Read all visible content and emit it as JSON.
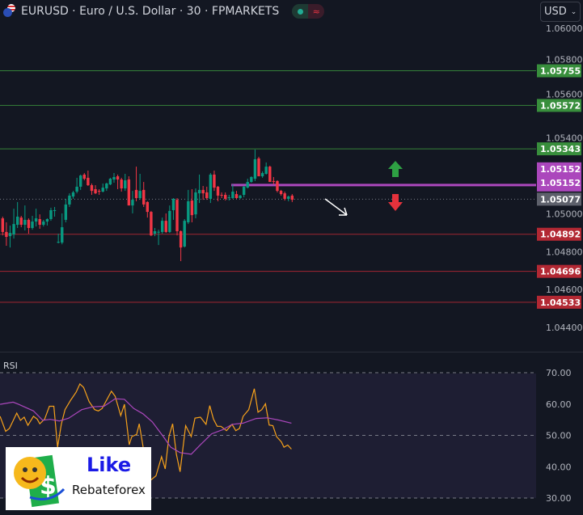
{
  "header": {
    "title": "EURUSD · Euro / U.S. Dollar · 30 · FPMARKETS",
    "currency": "USD",
    "market_status_icon": "market-open-dot",
    "session_icon": "wave-icon"
  },
  "colors": {
    "up": "#089981",
    "down": "#f23645",
    "resistance": "#388e3c",
    "support": "#b22833",
    "pivot": "#ab47bc",
    "last": "#5d606b",
    "rsi": "#f7a21b",
    "rsi_ma": "#ab47bc",
    "bg": "#131722",
    "rsi_bg": "#1e1e33"
  },
  "chart_data": [
    {
      "type": "candlestick",
      "title": "EURUSD · Euro / U.S. Dollar · 30 · FPMARKETS",
      "ylim": [
        1.0433,
        1.0607
      ],
      "y_ticks": [
        "1.06000",
        "1.05800",
        "1.05600",
        "1.05400",
        "1.05000",
        "1.04800",
        "1.04600",
        "1.04400"
      ],
      "y_tick_values": [
        1.06,
        1.058,
        1.056,
        1.054,
        1.05,
        1.048,
        1.046,
        1.044
      ],
      "ohlc": [
        [
          1.04976,
          1.04985,
          1.04886,
          1.04904
        ],
        [
          1.04904,
          1.04955,
          1.04831,
          1.04878
        ],
        [
          1.04882,
          1.04938,
          1.04822,
          1.04899
        ],
        [
          1.04891,
          1.05027,
          1.04869,
          1.04946
        ],
        [
          1.04942,
          1.05062,
          1.04925,
          1.04985
        ],
        [
          1.0498,
          1.04989,
          1.04929,
          1.04942
        ],
        [
          1.04942,
          1.05044,
          1.04912,
          1.04968
        ],
        [
          1.04968,
          1.04976,
          1.04895,
          1.04925
        ],
        [
          1.04925,
          1.04989,
          1.04916,
          1.04959
        ],
        [
          1.04959,
          1.05027,
          1.04933,
          1.04976
        ],
        [
          1.04972,
          1.04997,
          1.04921,
          1.04942
        ],
        [
          1.04942,
          1.04968,
          1.04933,
          1.04959
        ],
        [
          1.04959,
          1.04976,
          1.04938,
          1.04972
        ],
        [
          1.04972,
          1.05032,
          1.04963,
          1.05019
        ],
        [
          1.05015,
          1.05036,
          1.04985,
          1.05019
        ],
        [
          1.04848,
          1.04895,
          1.04844,
          1.04852
        ],
        [
          1.04848,
          1.05002,
          1.04839,
          1.04929
        ],
        [
          1.04968,
          1.05079,
          1.04955,
          1.05049
        ],
        [
          1.05049,
          1.05108,
          1.05036,
          1.05096
        ],
        [
          1.05091,
          1.05121,
          1.05079,
          1.05113
        ],
        [
          1.05117,
          1.0519,
          1.05108,
          1.05143
        ],
        [
          1.05143,
          1.05207,
          1.05126,
          1.05202
        ],
        [
          1.05207,
          1.05215,
          1.05177,
          1.05185
        ],
        [
          1.0519,
          1.05228,
          1.05147,
          1.05151
        ],
        [
          1.05151,
          1.0516,
          1.051,
          1.05121
        ],
        [
          1.0513,
          1.05151,
          1.05104,
          1.05108
        ],
        [
          1.05121,
          1.0513,
          1.051,
          1.0512
        ],
        [
          1.05117,
          1.0516,
          1.05113,
          1.05138
        ],
        [
          1.05134,
          1.05164,
          1.05121,
          1.0516
        ],
        [
          1.05155,
          1.0519,
          1.05151,
          1.05185
        ],
        [
          1.05181,
          1.05215,
          1.05164,
          1.05194
        ],
        [
          1.05198,
          1.05207,
          1.0513,
          1.05181
        ],
        [
          1.05181,
          1.0519,
          1.05117,
          1.05134
        ],
        [
          1.05134,
          1.05211,
          1.05121,
          1.05177
        ],
        [
          1.05181,
          1.05198,
          1.05044,
          1.05044
        ],
        [
          1.05044,
          1.05121,
          1.05002,
          1.05074
        ],
        [
          1.05126,
          1.05249,
          1.05066,
          1.05083
        ],
        [
          1.05083,
          1.05211,
          1.05074,
          1.05121
        ],
        [
          1.05126,
          1.05168,
          1.05036,
          1.05049
        ],
        [
          1.05062,
          1.05066,
          1.0498,
          1.0501
        ],
        [
          1.0501,
          1.05015,
          1.04882,
          1.04886
        ],
        [
          1.04895,
          1.04925,
          1.04882,
          1.04908
        ],
        [
          1.04904,
          1.04916,
          1.04835,
          1.04905
        ],
        [
          1.04904,
          1.0498,
          1.04895,
          1.04963
        ],
        [
          1.04963,
          1.05002,
          1.04899,
          1.04904
        ],
        [
          1.04904,
          1.05044,
          1.04899,
          1.05015
        ],
        [
          1.05019,
          1.05083,
          1.04968,
          1.05079
        ],
        [
          1.05074,
          1.05083,
          1.04886,
          1.04908
        ],
        [
          1.04908,
          1.04912,
          1.0475,
          1.04822
        ],
        [
          1.04827,
          1.04972,
          1.04822,
          1.04963
        ],
        [
          1.04955,
          1.05126,
          1.04946,
          1.05066
        ],
        [
          1.0507,
          1.0513,
          1.04955,
          1.04993
        ],
        [
          1.04997,
          1.05134,
          1.04976,
          1.05113
        ],
        [
          1.05108,
          1.05207,
          1.05057,
          1.05126
        ],
        [
          1.05126,
          1.05147,
          1.05074,
          1.05108
        ],
        [
          1.05113,
          1.05143,
          1.05074,
          1.05083
        ],
        [
          1.05079,
          1.05215,
          1.05057,
          1.05207
        ],
        [
          1.05207,
          1.05228,
          1.05121,
          1.05138
        ],
        [
          1.05143,
          1.05147,
          1.05066,
          1.05096
        ],
        [
          1.051,
          1.05113,
          1.05083,
          1.05099
        ],
        [
          1.051,
          1.05113,
          1.0507,
          1.05079
        ],
        [
          1.05083,
          1.051,
          1.0507,
          1.05087
        ],
        [
          1.05083,
          1.05155,
          1.05079,
          1.05117
        ],
        [
          1.05104,
          1.05121,
          1.05079,
          1.05083
        ],
        [
          1.05083,
          1.051,
          1.05079,
          1.05096
        ],
        [
          1.051,
          1.05147,
          1.05087,
          1.05143
        ],
        [
          1.05138,
          1.05185,
          1.05134,
          1.05168
        ],
        [
          1.05168,
          1.05198,
          1.05164,
          1.05194
        ],
        [
          1.05185,
          1.05339,
          1.05173,
          1.05288
        ],
        [
          1.05292,
          1.05301,
          1.05198,
          1.05198
        ],
        [
          1.05198,
          1.05224,
          1.0519,
          1.05215
        ],
        [
          1.05211,
          1.05271,
          1.05207,
          1.05249
        ],
        [
          1.05249,
          1.05254,
          1.05168,
          1.05168
        ],
        [
          1.05173,
          1.05194,
          1.05155,
          1.05172
        ],
        [
          1.05173,
          1.05177,
          1.05113,
          1.05121
        ],
        [
          1.05121,
          1.05126,
          1.05096,
          1.05104
        ],
        [
          1.05108,
          1.05117,
          1.0507,
          1.05079
        ],
        [
          1.05079,
          1.05096,
          1.05066,
          1.05091
        ],
        [
          1.05096,
          1.05104,
          1.05062,
          1.05074
        ]
      ],
      "levels": [
        {
          "price": 1.05755,
          "label": "1.05755",
          "kind": "resistance"
        },
        {
          "price": 1.05572,
          "label": "1.05572",
          "kind": "resistance"
        },
        {
          "price": 1.05343,
          "label": "1.05343",
          "kind": "resistance"
        },
        {
          "price": 1.04892,
          "label": "1.04892",
          "kind": "support"
        },
        {
          "price": 1.04696,
          "label": "1.04696",
          "kind": "support"
        },
        {
          "price": 1.04533,
          "label": "1.04533",
          "kind": "support"
        }
      ],
      "pivot": {
        "price": 1.05152,
        "labels": [
          "1.05152",
          "1.05152"
        ]
      },
      "last_price": {
        "price": 1.05077,
        "label": "1.05077"
      },
      "annotations": [
        "up-arrow-green",
        "down-arrow-red",
        "down-right-arrow-white"
      ]
    },
    {
      "type": "line",
      "title": "RSI",
      "ylim": [
        27,
        73
      ],
      "y_ticks": [
        "70.00",
        "60.00",
        "50.00",
        "40.00",
        "30.00"
      ],
      "y_tick_values": [
        70,
        60,
        50,
        40,
        30
      ],
      "bands": [
        70,
        50,
        30
      ],
      "series": [
        {
          "key": "rsi",
          "points": [
            [
              0.3,
              56.1
            ],
            [
              1.8,
              51.3
            ],
            [
              2.8,
              52.2
            ],
            [
              4.8,
              57.1
            ],
            [
              5.8,
              54.8
            ],
            [
              6.8,
              55.8
            ],
            [
              7.8,
              53.2
            ],
            [
              9.3,
              56.1
            ],
            [
              10.3,
              55.2
            ],
            [
              11,
              53.7
            ],
            [
              12.3,
              55.2
            ],
            [
              13.6,
              59.3
            ],
            [
              14.8,
              59.3
            ],
            [
              15.8,
              46.2
            ],
            [
              16.8,
              53.5
            ],
            [
              17.8,
              58.2
            ],
            [
              19.3,
              61.2
            ],
            [
              20.8,
              63.8
            ],
            [
              21.8,
              66.4
            ],
            [
              22.8,
              65.3
            ],
            [
              24.3,
              60.8
            ],
            [
              25.8,
              58.2
            ],
            [
              26.8,
              57.8
            ],
            [
              27.8,
              58.6
            ],
            [
              30.3,
              64.1
            ],
            [
              31.3,
              62.5
            ],
            [
              32.8,
              56.3
            ],
            [
              33.8,
              59.9
            ],
            [
              35.1,
              47
            ],
            [
              35.8,
              49.6
            ],
            [
              37.1,
              50.3
            ],
            [
              37.8,
              53.7
            ],
            [
              38.8,
              46.6
            ],
            [
              39.8,
              36.7
            ],
            [
              40.3,
              35
            ],
            [
              41.1,
              35.9
            ],
            [
              42.3,
              37.1
            ],
            [
              43.8,
              43.2
            ],
            [
              44.8,
              39.3
            ],
            [
              45.8,
              49.6
            ],
            [
              46.8,
              53.7
            ],
            [
              47.8,
              44
            ],
            [
              48.8,
              38.4
            ],
            [
              50.3,
              53.1
            ],
            [
              51.8,
              49.6
            ],
            [
              52.8,
              55.5
            ],
            [
              54.3,
              55.8
            ],
            [
              55.8,
              53.5
            ],
            [
              56.8,
              59.5
            ],
            [
              57.8,
              55.2
            ],
            [
              58.8,
              52.9
            ],
            [
              59.8,
              52.9
            ],
            [
              61.3,
              51.5
            ],
            [
              62.8,
              53.5
            ],
            [
              63.8,
              51.5
            ],
            [
              64.8,
              52.2
            ],
            [
              65.8,
              56.1
            ],
            [
              67.3,
              58.2
            ],
            [
              68.8,
              64.9
            ],
            [
              69.8,
              57.4
            ],
            [
              70.8,
              58.2
            ],
            [
              71.8,
              60.1
            ],
            [
              72.8,
              53.3
            ],
            [
              73.8,
              53.1
            ],
            [
              74.8,
              49.6
            ],
            [
              76.1,
              47.9
            ],
            [
              76.8,
              46.2
            ],
            [
              77.8,
              46.9
            ],
            [
              78.8,
              45.6
            ]
          ]
        },
        {
          "key": "rsi_ma",
          "points": [
            [
              0.3,
              59.9
            ],
            [
              3.8,
              60.6
            ],
            [
              5.3,
              59.9
            ],
            [
              9.3,
              57.8
            ],
            [
              11.8,
              54.8
            ],
            [
              13.8,
              55.1
            ],
            [
              16.3,
              54.6
            ],
            [
              18.8,
              55.5
            ],
            [
              22.3,
              58.2
            ],
            [
              25.3,
              59.1
            ],
            [
              28.3,
              59.3
            ],
            [
              31.3,
              61.7
            ],
            [
              33.8,
              61.5
            ],
            [
              36.3,
              58.6
            ],
            [
              38.8,
              56.9
            ],
            [
              41.3,
              54.3
            ],
            [
              44.3,
              49.6
            ],
            [
              46.3,
              46.2
            ],
            [
              48.8,
              44.5
            ],
            [
              51.8,
              44
            ],
            [
              54.3,
              47
            ],
            [
              57.3,
              50.5
            ],
            [
              60.3,
              51.8
            ],
            [
              62.8,
              53.5
            ],
            [
              65.8,
              53.9
            ],
            [
              69.3,
              55.4
            ],
            [
              72.3,
              55.6
            ],
            [
              75.3,
              54.9
            ],
            [
              78.8,
              53.9
            ]
          ]
        }
      ]
    }
  ],
  "logo": {
    "line1": "Like",
    "line2": "Rebateforex"
  }
}
